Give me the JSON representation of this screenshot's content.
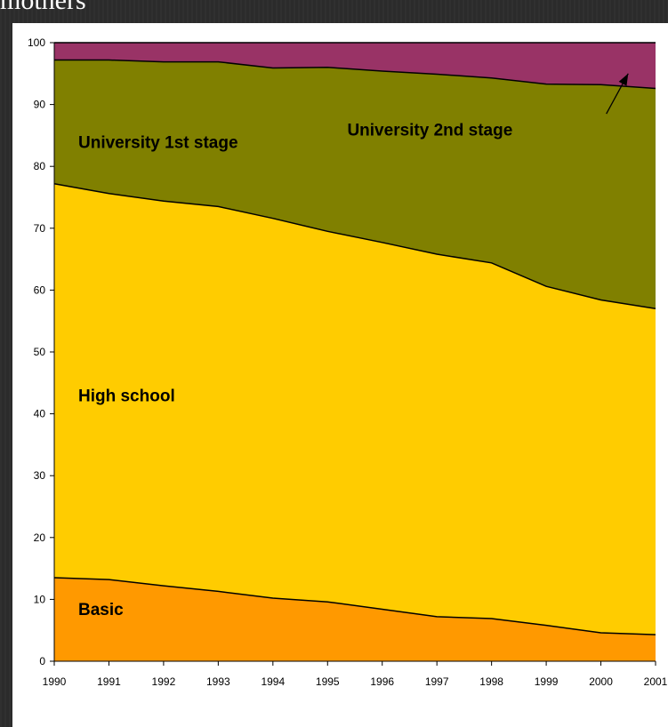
{
  "slide": {
    "title": "mothers"
  },
  "colors": {
    "basic": "#FF9900",
    "high_school": "#FFCC00",
    "university_1st": "#808000",
    "university_2nd": "#993366"
  },
  "chart_data": {
    "type": "area",
    "stacked": true,
    "x": [
      1990,
      1991,
      1992,
      1993,
      1994,
      1995,
      1996,
      1997,
      1998,
      1999,
      2000,
      2001
    ],
    "ylim": [
      0,
      100
    ],
    "yticks": [
      0,
      10,
      20,
      30,
      40,
      50,
      60,
      70,
      80,
      90,
      100
    ],
    "xlabel": "",
    "ylabel": "",
    "grid": false,
    "legend": "none",
    "series": [
      {
        "name": "Basic",
        "values": [
          13.5,
          13.2,
          12.2,
          11.3,
          10.2,
          9.6,
          8.4,
          7.2,
          6.9,
          5.8,
          4.6,
          4.3
        ]
      },
      {
        "name": "High school",
        "values": [
          63.7,
          62.4,
          62.2,
          62.2,
          61.4,
          59.9,
          59.3,
          58.6,
          57.5,
          54.8,
          53.8,
          52.7
        ]
      },
      {
        "name": "University 1st stage",
        "values": [
          20.0,
          21.6,
          22.5,
          23.4,
          24.3,
          26.5,
          27.7,
          29.1,
          29.9,
          32.7,
          34.8,
          35.6
        ]
      },
      {
        "name": "University 2nd stage",
        "values": [
          2.8,
          2.8,
          3.1,
          3.1,
          4.1,
          4.0,
          4.6,
          5.1,
          5.7,
          6.7,
          6.8,
          7.4
        ]
      }
    ],
    "area_labels": [
      "Basic",
      "High school",
      "University 1st stage",
      "University 2nd stage"
    ]
  }
}
